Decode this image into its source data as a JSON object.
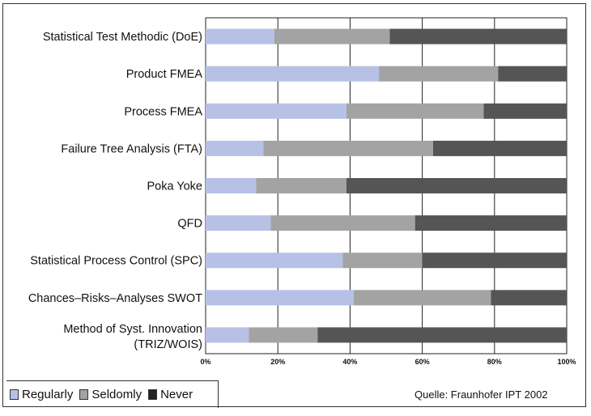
{
  "chart_data": {
    "type": "bar",
    "orientation": "horizontal",
    "stacked": true,
    "categories": [
      "Statistical Test Methodic (DoE)",
      "Product FMEA",
      "Process FMEA",
      "Failure Tree Analysis (FTA)",
      "Poka Yoke",
      "QFD",
      "Statistical Process Control (SPC)",
      "Chances–Risks–Analyses SWOT",
      "Method of Syst. Innovation (TRIZ/WOIS)"
    ],
    "series": [
      {
        "name": "Regularly",
        "color": "#b7c1e6",
        "values": [
          19,
          48,
          39,
          16,
          14,
          18,
          38,
          41,
          12
        ]
      },
      {
        "name": "Seldomly",
        "color": "#a3a3a3",
        "values": [
          32,
          33,
          38,
          47,
          25,
          40,
          22,
          38,
          19
        ]
      },
      {
        "name": "Never",
        "color": "#555555",
        "values": [
          49,
          19,
          23,
          37,
          61,
          42,
          40,
          21,
          69
        ]
      }
    ],
    "xlim": [
      0,
      100
    ],
    "xticks": [
      "0%",
      "20%",
      "40%",
      "60%",
      "80%",
      "100%"
    ],
    "grid": true,
    "legend_position": "bottom-left"
  },
  "legend": {
    "regularly": "Regularly",
    "seldomly": "Seldomly",
    "never": "Never"
  },
  "source": "Quelle: Fraunhofer IPT 2002"
}
